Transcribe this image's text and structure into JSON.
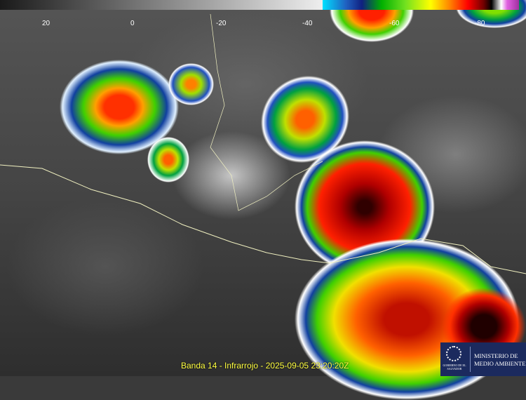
{
  "colorbar": {
    "tick_labels": [
      "20",
      "0",
      "-20",
      "-40",
      "-60",
      "-80"
    ]
  },
  "caption": "Banda 14 - Infrarrojo - 2025-09-05 23:20:20Z",
  "logo": {
    "government": "GOBIERNO DE EL SALVADOR",
    "ministry_line1": "MINISTERIO DE",
    "ministry_line2": "MEDIO AMBIENTE"
  },
  "colors": {
    "caption": "#ffff40",
    "logo_bg": "#1b2a5e"
  }
}
